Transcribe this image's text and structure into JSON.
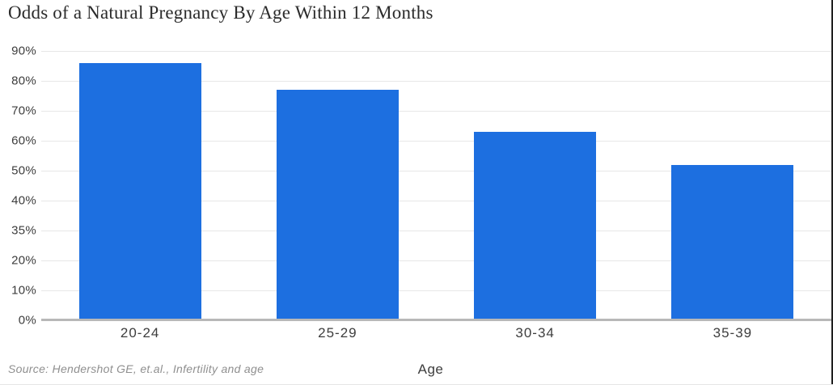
{
  "chart_data": {
    "type": "bar",
    "title": "Odds of a Natural Pregnancy By Age Within 12 Months",
    "categories": [
      "20-24",
      "25-29",
      "30-34",
      "35-39"
    ],
    "values": [
      86,
      77,
      63,
      52
    ],
    "xlabel": "Age",
    "ylabel": "",
    "ylim": [
      0,
      90
    ],
    "y_tick_labels": [
      "90%",
      "80%",
      "70%",
      "60%",
      "50%",
      "40%",
      "35%",
      "20%",
      "10%",
      "0%"
    ],
    "grid": "horizontal",
    "legend_position": "none",
    "bar_color": "#1d6fe0",
    "gridline_color": "#e7e7e7",
    "axis_line_color": "#b8b8b8",
    "source_note": "Source: Hendershot GE, et.al., Infertility and age"
  }
}
